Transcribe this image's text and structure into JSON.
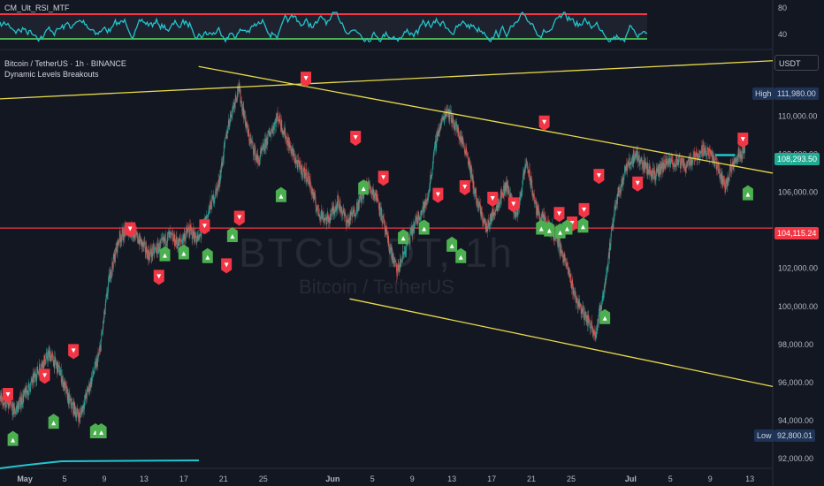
{
  "indicator_rsi": {
    "label": "CM_Ult_RSI_MTF",
    "color": "#22c5cd",
    "upper_color": "#f23645",
    "lower_color": "#4caf50",
    "axis_ticks": [
      "80",
      "40"
    ]
  },
  "header": {
    "symbol_line": "Bitcoin / TetherUS · 1h · BINANCE",
    "indicator_name": "Dynamic Levels Breakouts"
  },
  "watermark": {
    "ticker": "BTCUSDT, 1h",
    "name": "Bitcoin / TetherUS"
  },
  "price_scale": {
    "currency": "USDT",
    "ticks": [
      "110,000.00",
      "108,000.00",
      "106,000.00",
      "104,000.00",
      "102,000.00",
      "100,000.00",
      "98,000.00",
      "96,000.00",
      "94,000.00",
      "92,000.00"
    ]
  },
  "tags": {
    "high": {
      "label": "High",
      "value": "111,980.00"
    },
    "current": {
      "value": "108,293.50",
      "color": "#22ab94"
    },
    "level": {
      "value": "104,115.24",
      "color": "#f23645"
    },
    "low": {
      "label": "Low",
      "value": "92,800.01"
    }
  },
  "time_axis": {
    "labels": [
      "May",
      "5",
      "9",
      "13",
      "17",
      "21",
      "25",
      "Jun",
      "5",
      "9",
      "13",
      "17",
      "21",
      "25",
      "Jul",
      "5",
      "9",
      "13"
    ]
  },
  "chart_data": {
    "type": "candlestick",
    "x_unit": "day (hourly candles, 1 May 2025 = day 1)",
    "ylim": [
      91500,
      113400
    ],
    "xlim": [
      -1.5,
      76.3
    ],
    "horizontal_level": 104115.24,
    "price_path": [
      [
        -1.5,
        95200
      ],
      [
        0,
        94500
      ],
      [
        1.5,
        95800
      ],
      [
        2.5,
        96800
      ],
      [
        3.5,
        97500
      ],
      [
        4.5,
        96600
      ],
      [
        5.5,
        95000
      ],
      [
        6.5,
        94200
      ],
      [
        7.5,
        95800
      ],
      [
        8.5,
        97500
      ],
      [
        9.5,
        101500
      ],
      [
        10.5,
        103600
      ],
      [
        11.5,
        104100
      ],
      [
        12.5,
        103500
      ],
      [
        13.5,
        102700
      ],
      [
        14.5,
        103100
      ],
      [
        15.5,
        103700
      ],
      [
        16.5,
        103300
      ],
      [
        17.5,
        104000
      ],
      [
        18.5,
        103500
      ],
      [
        19.5,
        105000
      ],
      [
        20.5,
        106400
      ],
      [
        21.5,
        109600
      ],
      [
        22.5,
        111500
      ],
      [
        23.5,
        109000
      ],
      [
        24.5,
        107600
      ],
      [
        25.5,
        108900
      ],
      [
        26.5,
        110000
      ],
      [
        27.5,
        108600
      ],
      [
        28.5,
        107400
      ],
      [
        29.5,
        106800
      ],
      [
        30.5,
        105000
      ],
      [
        31.5,
        104500
      ],
      [
        32.5,
        105500
      ],
      [
        33.5,
        104400
      ],
      [
        34.5,
        105300
      ],
      [
        35.5,
        106400
      ],
      [
        36.5,
        105700
      ],
      [
        37.5,
        103500
      ],
      [
        38.5,
        101800
      ],
      [
        39.5,
        103300
      ],
      [
        40.5,
        104600
      ],
      [
        41.5,
        105500
      ],
      [
        42.5,
        109000
      ],
      [
        43.5,
        110400
      ],
      [
        44.5,
        109300
      ],
      [
        45.5,
        108100
      ],
      [
        46.5,
        105500
      ],
      [
        47.5,
        104100
      ],
      [
        48.5,
        105300
      ],
      [
        49.5,
        106400
      ],
      [
        50.5,
        104700
      ],
      [
        51.5,
        107600
      ],
      [
        52.5,
        105100
      ],
      [
        53.5,
        104300
      ],
      [
        54.5,
        103700
      ],
      [
        55.5,
        102200
      ],
      [
        56.5,
        100400
      ],
      [
        57.5,
        99400
      ],
      [
        58.5,
        98600
      ],
      [
        59.5,
        101500
      ],
      [
        60.5,
        105500
      ],
      [
        61.5,
        107200
      ],
      [
        62.5,
        108000
      ],
      [
        63.5,
        107300
      ],
      [
        64.5,
        106900
      ],
      [
        65.5,
        107500
      ],
      [
        66.5,
        107600
      ],
      [
        67.5,
        107400
      ],
      [
        68.5,
        107900
      ],
      [
        69.5,
        108300
      ],
      [
        70.5,
        107600
      ],
      [
        71.5,
        106300
      ],
      [
        72.5,
        107800
      ],
      [
        73.5,
        108293.5
      ]
    ],
    "trendlines": [
      {
        "name": "upper_channel",
        "points": [
          [
            -1.5,
            110900
          ],
          [
            76.3,
            112900
          ]
        ],
        "color": "#e8d94a"
      },
      {
        "name": "upper_resistance",
        "points": [
          [
            18.5,
            112600
          ],
          [
            76.3,
            107000
          ]
        ],
        "color": "#e8d94a"
      },
      {
        "name": "lower_support",
        "points": [
          [
            33.7,
            100400
          ],
          [
            76.3,
            95800
          ]
        ],
        "color": "#e8d94a"
      }
    ],
    "sell_signals": [
      [
        -0.7,
        95400
      ],
      [
        3.0,
        96400
      ],
      [
        5.9,
        97700
      ],
      [
        11.6,
        104100
      ],
      [
        14.5,
        101600
      ],
      [
        19.1,
        104250
      ],
      [
        21.3,
        102200
      ],
      [
        22.6,
        104700
      ],
      [
        29.3,
        112000
      ],
      [
        34.3,
        108900
      ],
      [
        37.1,
        106800
      ],
      [
        42.6,
        105900
      ],
      [
        45.3,
        106300
      ],
      [
        48.1,
        105700
      ],
      [
        50.2,
        105400
      ],
      [
        53.3,
        109700
      ],
      [
        54.8,
        104900
      ],
      [
        56.1,
        104400
      ],
      [
        57.3,
        105100
      ],
      [
        58.8,
        106900
      ],
      [
        62.7,
        106500
      ],
      [
        73.3,
        108800
      ]
    ],
    "buy_signals": [
      [
        -0.2,
        93000
      ],
      [
        3.9,
        93900
      ],
      [
        8.1,
        93400
      ],
      [
        8.7,
        93400
      ],
      [
        15.1,
        102700
      ],
      [
        17.0,
        102800
      ],
      [
        19.4,
        102600
      ],
      [
        21.9,
        103700
      ],
      [
        26.8,
        105800
      ],
      [
        35.1,
        106200
      ],
      [
        39.1,
        103600
      ],
      [
        41.2,
        104100
      ],
      [
        44.0,
        103200
      ],
      [
        44.9,
        102600
      ],
      [
        53.0,
        104100
      ],
      [
        53.8,
        104000
      ],
      [
        54.9,
        103900
      ],
      [
        55.6,
        104100
      ],
      [
        57.2,
        104200
      ],
      [
        59.4,
        99400
      ],
      [
        73.8,
        105900
      ]
    ],
    "rsi_ylim": [
      20,
      100
    ],
    "rsi_bounds": [
      70,
      30
    ],
    "rsi_seed": 7
  }
}
